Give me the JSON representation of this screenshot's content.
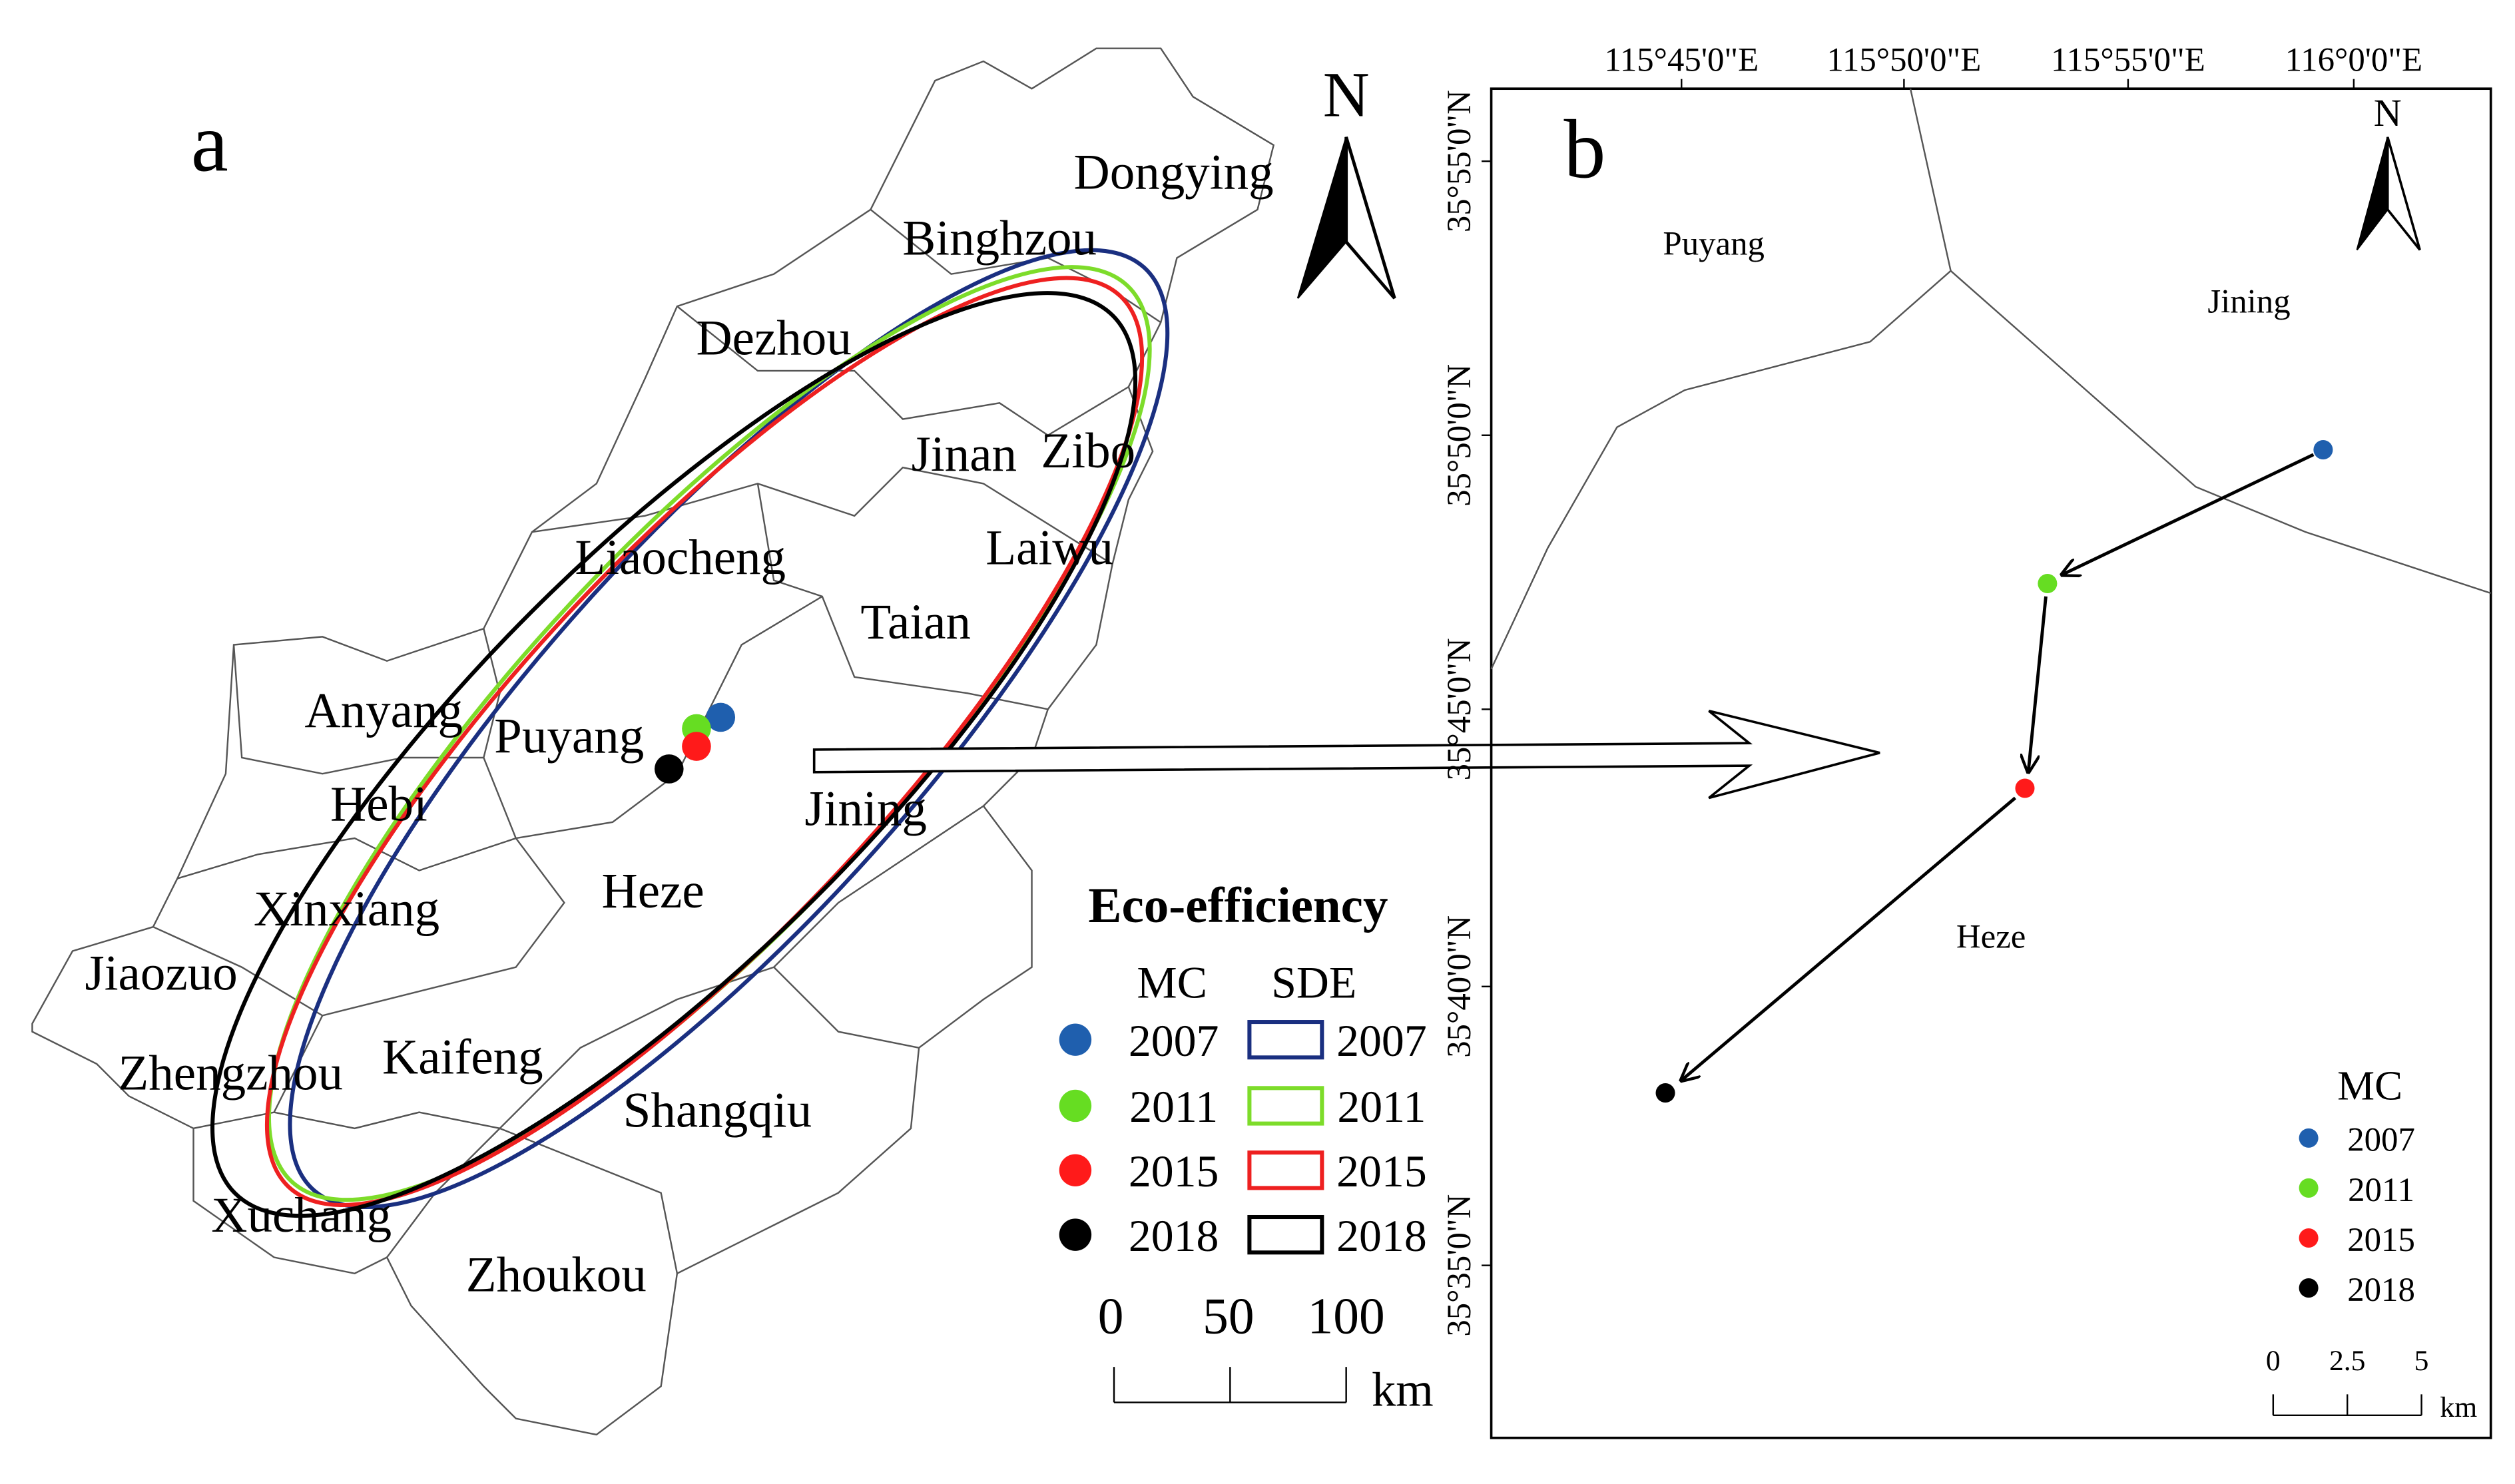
{
  "panel_a": {
    "label": "a",
    "north": "N",
    "cities": [
      "Dongying",
      "Binghzou",
      "Dezhou",
      "Jinan",
      "Zibo",
      "Liaocheng",
      "Laiwu",
      "Taian",
      "Anyang",
      "Puyang",
      "Hebi",
      "Jining",
      "Heze",
      "Xinxiang",
      "Jiaozuo",
      "Zhengzhou",
      "Kaifeng",
      "Shangqiu",
      "Xuchang",
      "Zhoukou"
    ],
    "legend": {
      "title": "Eco-efficiency",
      "mc_header": "MC",
      "sde_header": "SDE",
      "years": [
        "2007",
        "2011",
        "2015",
        "2018"
      ],
      "colors": [
        "#1f5fae",
        "#66dd22",
        "#ff1a1a",
        "#000000"
      ],
      "sde_colors": [
        "#1a2f80",
        "#7ddc2a",
        "#ee2020",
        "#000000"
      ]
    },
    "scale": {
      "labels": [
        "0",
        "50",
        "100"
      ],
      "unit": "km"
    }
  },
  "panel_b": {
    "label": "b",
    "north": "N",
    "x_labels": [
      "115°45'0\"E",
      "115°50'0\"E",
      "115°55'0\"E",
      "116°0'0\"E"
    ],
    "y_labels": [
      "35°55'0\"N",
      "35°50'0\"N",
      "35°45'0\"N",
      "35°40'0\"N",
      "35°35'0\"N"
    ],
    "regions": [
      "Puyang",
      "Jining",
      "Heze"
    ],
    "legend": {
      "title": "MC",
      "years": [
        "2007",
        "2011",
        "2015",
        "2018"
      ]
    },
    "scale": {
      "labels": [
        "0",
        "2.5",
        "5"
      ],
      "unit": "km"
    }
  }
}
